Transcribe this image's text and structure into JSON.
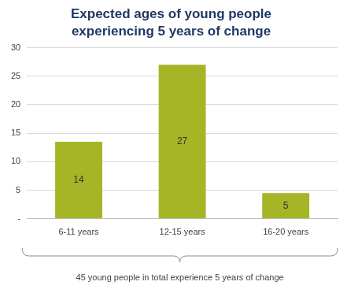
{
  "chart_data": {
    "type": "bar",
    "title": [
      "Expected ages of young people",
      "experiencing 5 years of change"
    ],
    "categories": [
      "6-11 years",
      "12-15 years",
      "16-20 years"
    ],
    "values": [
      13.5,
      27,
      4.5
    ],
    "value_labels": [
      "14",
      "27",
      "5"
    ],
    "data_labels": true,
    "color": "#a5b526",
    "ylim": [
      0,
      30
    ],
    "yticks": [
      {
        "value": 0,
        "label": "-"
      },
      5,
      10,
      15,
      20,
      25,
      30
    ],
    "grid": true,
    "annotation": "45 young people in total experience 5 years of change"
  }
}
